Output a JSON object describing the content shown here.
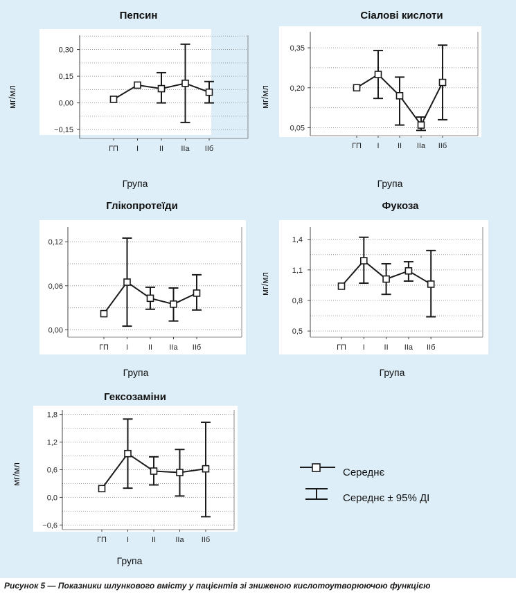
{
  "caption": "Рисунок 5 — Показники шлункового вмісту у пацієнтів зі зниженою кислотоутворюючою функцією",
  "legend": {
    "mean_label": "Середнє",
    "ci_label": "Середнє  ± 95%  ДІ"
  },
  "colors": {
    "background": "#ddeef8",
    "plot_background": "#ffffff",
    "line": "#1a1a1a",
    "grid": "#9a9a9a"
  },
  "chart_data": [
    {
      "type": "line",
      "title": "Пепсин",
      "xlabel": "Група",
      "ylabel": "мг/мл",
      "categories": [
        "ГП",
        "І",
        "ІІ",
        "ІІа",
        "ІІб"
      ],
      "series": [
        {
          "mean": [
            0.02,
            0.1,
            0.08,
            0.11,
            0.06
          ],
          "ci_low": [
            null,
            null,
            0.0,
            -0.11,
            0.0
          ],
          "ci_high": [
            null,
            null,
            0.17,
            0.33,
            0.12
          ]
        }
      ],
      "yticks": [
        -0.15,
        0.0,
        0.15,
        0.3
      ],
      "ytick_labels": [
        "−0,15",
        "0,00",
        "0,15",
        "0,30"
      ],
      "ylim": [
        -0.2,
        0.38
      ],
      "grid": true
    },
    {
      "type": "line",
      "title": "Сіалові кислоти",
      "xlabel": "Група",
      "ylabel": "мг/мл",
      "categories": [
        "ГП",
        "І",
        "ІІ",
        "ІІа",
        "ІІб"
      ],
      "series": [
        {
          "mean": [
            0.2,
            0.25,
            0.17,
            0.06,
            0.22
          ],
          "ci_low": [
            null,
            0.16,
            0.06,
            0.04,
            0.08
          ],
          "ci_high": [
            null,
            0.34,
            0.24,
            0.09,
            0.36
          ]
        }
      ],
      "yticks": [
        0.05,
        0.2,
        0.35
      ],
      "ytick_labels": [
        "0,05",
        "0,20",
        "0,35"
      ],
      "ylim": [
        0.02,
        0.41
      ],
      "grid": true
    },
    {
      "type": "line",
      "title": "Глікопротеїди",
      "xlabel": "Група",
      "ylabel": "",
      "categories": [
        "ГП",
        "І",
        "ІІ",
        "ІІа",
        "ІІб"
      ],
      "series": [
        {
          "mean": [
            0.022,
            0.065,
            0.043,
            0.035,
            0.05
          ],
          "ci_low": [
            null,
            0.005,
            0.028,
            0.012,
            0.027
          ],
          "ci_high": [
            null,
            0.125,
            0.058,
            0.057,
            0.075
          ]
        }
      ],
      "yticks": [
        0.0,
        0.06,
        0.12
      ],
      "ytick_labels": [
        "0,00",
        "0,06",
        "0,12"
      ],
      "ylim": [
        -0.01,
        0.14
      ],
      "grid": true
    },
    {
      "type": "line",
      "title": "Фукоза",
      "xlabel": "Група",
      "ylabel": "мг/мл",
      "categories": [
        "ГП",
        "І",
        "ІІ",
        "ІІа",
        "ІІб"
      ],
      "series": [
        {
          "mean": [
            0.94,
            1.19,
            1.01,
            1.09,
            0.96
          ],
          "ci_low": [
            null,
            0.97,
            0.86,
            0.99,
            0.64
          ],
          "ci_high": [
            null,
            1.42,
            1.16,
            1.18,
            1.29
          ]
        }
      ],
      "yticks": [
        0.5,
        0.8,
        1.1,
        1.4
      ],
      "ytick_labels": [
        "0,5",
        "0,8",
        "1,1",
        "1,4"
      ],
      "ylim": [
        0.44,
        1.52
      ],
      "grid": true
    },
    {
      "type": "line",
      "title": "Гексозаміни",
      "xlabel": "Група",
      "ylabel": "мг/мл",
      "categories": [
        "ГП",
        "І",
        "ІІ",
        "ІІа",
        "ІІб"
      ],
      "series": [
        {
          "mean": [
            0.19,
            0.95,
            0.57,
            0.54,
            0.62
          ],
          "ci_low": [
            null,
            0.2,
            0.27,
            0.03,
            -0.42
          ],
          "ci_high": [
            null,
            1.7,
            0.88,
            1.04,
            1.63
          ]
        }
      ],
      "yticks": [
        -0.6,
        0.0,
        0.6,
        1.2,
        1.8
      ],
      "ytick_labels": [
        "−0,6",
        "0,0",
        "0,6",
        "1,2",
        "1,8"
      ],
      "ylim": [
        -0.7,
        1.9
      ],
      "grid": true
    }
  ]
}
